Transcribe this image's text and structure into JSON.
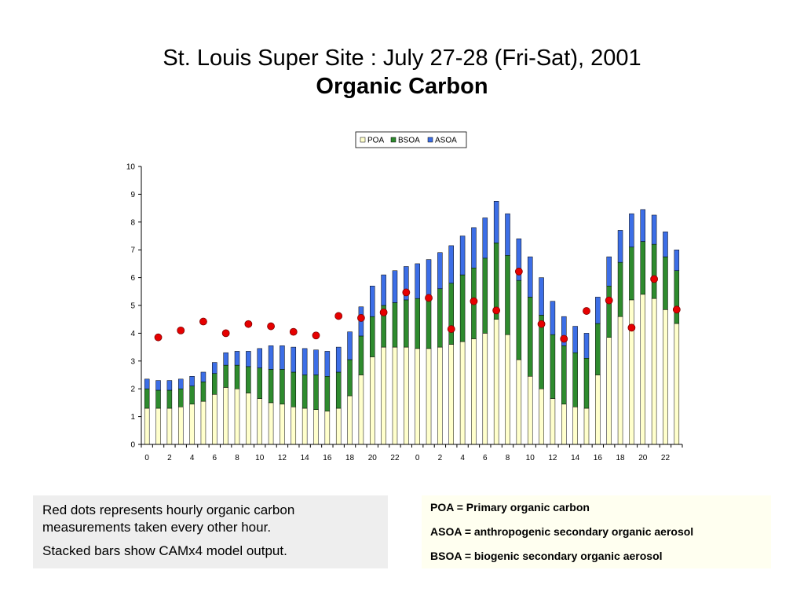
{
  "title": {
    "line1": "St. Louis Super Site : July 27-28 (Fri-Sat), 2001",
    "line2": "Organic Carbon"
  },
  "colors": {
    "poa": "#ffffcc",
    "bsoa": "#2e8b2e",
    "asoa": "#3c6ee6",
    "dot": "#e60000",
    "dot_edge": "#800000"
  },
  "chart_data": {
    "type": "bar",
    "stacked": true,
    "legend": [
      "POA",
      "BSOA",
      "ASOA"
    ],
    "legend_position": "top-center",
    "ylim": [
      0,
      10
    ],
    "yticks": [
      "0",
      "1",
      "2",
      "3",
      "4",
      "5",
      "6",
      "7",
      "8",
      "9",
      "10"
    ],
    "xtick_labels": [
      "0",
      "2",
      "4",
      "6",
      "8",
      "10",
      "12",
      "14",
      "16",
      "18",
      "20",
      "22",
      "0",
      "2",
      "4",
      "6",
      "8",
      "10",
      "12",
      "14",
      "16",
      "18",
      "20",
      "22"
    ],
    "hours": [
      0,
      1,
      2,
      3,
      4,
      5,
      6,
      7,
      8,
      9,
      10,
      11,
      12,
      13,
      14,
      15,
      16,
      17,
      18,
      19,
      20,
      21,
      22,
      23,
      0,
      1,
      2,
      3,
      4,
      5,
      6,
      7,
      8,
      9,
      10,
      11,
      12,
      13,
      14,
      15,
      16,
      17,
      18,
      19,
      20,
      21,
      22,
      23
    ],
    "series": [
      {
        "name": "POA",
        "values": [
          1.3,
          1.3,
          1.3,
          1.35,
          1.45,
          1.55,
          1.8,
          2.05,
          2.0,
          1.85,
          1.65,
          1.5,
          1.45,
          1.35,
          1.3,
          1.25,
          1.2,
          1.3,
          1.75,
          2.5,
          3.15,
          3.5,
          3.5,
          3.5,
          3.45,
          3.45,
          3.5,
          3.6,
          3.7,
          3.8,
          4.0,
          4.5,
          3.95,
          3.05,
          2.45,
          2.0,
          1.65,
          1.45,
          1.35,
          1.3,
          2.5,
          3.85,
          4.6,
          5.2,
          5.4,
          5.25,
          4.85,
          4.35
        ]
      },
      {
        "name": "BSOA",
        "values": [
          0.7,
          0.65,
          0.65,
          0.65,
          0.65,
          0.7,
          0.75,
          0.8,
          0.85,
          0.95,
          1.1,
          1.2,
          1.25,
          1.25,
          1.2,
          1.25,
          1.25,
          1.3,
          1.3,
          1.4,
          1.45,
          1.5,
          1.6,
          1.7,
          1.8,
          1.9,
          2.1,
          2.2,
          2.4,
          2.55,
          2.7,
          2.75,
          2.85,
          2.85,
          2.85,
          2.65,
          2.3,
          2.1,
          1.95,
          1.8,
          1.85,
          1.85,
          1.95,
          1.9,
          1.9,
          1.95,
          1.9,
          1.9
        ]
      },
      {
        "name": "ASOA",
        "values": [
          0.35,
          0.35,
          0.35,
          0.35,
          0.35,
          0.35,
          0.4,
          0.45,
          0.5,
          0.55,
          0.7,
          0.85,
          0.85,
          0.9,
          0.95,
          0.9,
          0.9,
          0.9,
          1.0,
          1.05,
          1.1,
          1.1,
          1.15,
          1.2,
          1.25,
          1.3,
          1.3,
          1.35,
          1.4,
          1.45,
          1.45,
          1.5,
          1.5,
          1.5,
          1.45,
          1.35,
          1.2,
          1.05,
          0.95,
          0.9,
          0.95,
          1.05,
          1.15,
          1.2,
          1.15,
          1.05,
          0.9,
          0.75
        ]
      }
    ],
    "observations": {
      "name": "Observed hourly organic carbon",
      "x_index": [
        1,
        3,
        5,
        7,
        9,
        11,
        13,
        15,
        17,
        19,
        21,
        23,
        25,
        27,
        29,
        31,
        33,
        35,
        37,
        39,
        41,
        43,
        45,
        47
      ],
      "values": [
        3.85,
        4.1,
        4.42,
        4.0,
        4.33,
        4.25,
        4.05,
        3.92,
        4.62,
        4.55,
        4.75,
        5.47,
        5.27,
        4.15,
        5.15,
        4.82,
        6.22,
        4.33,
        3.8,
        4.8,
        5.18,
        4.2,
        5.95,
        4.85
      ]
    }
  },
  "notes": {
    "left": [
      "Red dots represents hourly organic carbon measurements taken every other hour.",
      "Stacked bars show CAMx4 model output."
    ],
    "right": [
      "POA = Primary organic carbon",
      "ASOA = anthropogenic secondary organic aerosol",
      "BSOA = biogenic secondary organic aerosol"
    ]
  }
}
